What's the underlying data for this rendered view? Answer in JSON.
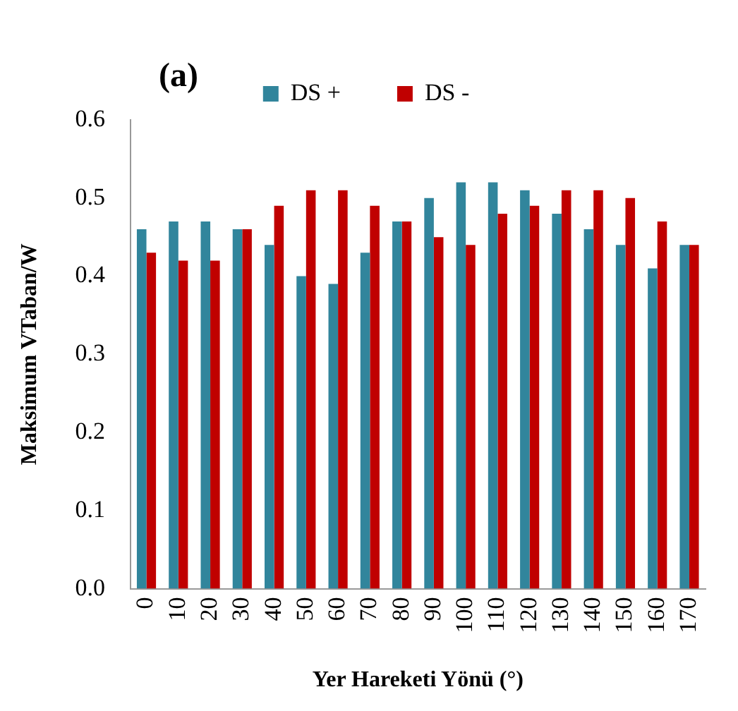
{
  "chart_data": {
    "type": "bar",
    "xlabel": "Yer Hareketi Yönü (°)",
    "ylabel": "Maksimum VTaban/W",
    "annotations": [
      "(a)"
    ],
    "categories": [
      "0",
      "10",
      "20",
      "30",
      "40",
      "50",
      "60",
      "70",
      "80",
      "90",
      "100",
      "110",
      "120",
      "130",
      "140",
      "150",
      "160",
      "170"
    ],
    "series": [
      {
        "name": "DS +",
        "color": "#31859c",
        "values": [
          0.46,
          0.47,
          0.47,
          0.46,
          0.44,
          0.4,
          0.39,
          0.43,
          0.47,
          0.5,
          0.52,
          0.52,
          0.51,
          0.48,
          0.46,
          0.44,
          0.41,
          0.44
        ]
      },
      {
        "name": "DS -",
        "color": "#c00000",
        "values": [
          0.43,
          0.42,
          0.42,
          0.46,
          0.49,
          0.51,
          0.51,
          0.49,
          0.47,
          0.45,
          0.44,
          0.48,
          0.49,
          0.51,
          0.51,
          0.5,
          0.47,
          0.44
        ]
      }
    ],
    "ylim": [
      0,
      0.6
    ],
    "yticks": [
      {
        "value": 0,
        "label": "0.0"
      },
      {
        "value": 0.1,
        "label": "0.1"
      },
      {
        "value": 0.2,
        "label": "0.2"
      },
      {
        "value": 0.3,
        "label": "0.3"
      },
      {
        "value": 0.4,
        "label": "0.4"
      },
      {
        "value": 0.5,
        "label": "0.5"
      },
      {
        "value": 0.6,
        "label": "0.6"
      }
    ],
    "grid": false,
    "legend": "top"
  }
}
